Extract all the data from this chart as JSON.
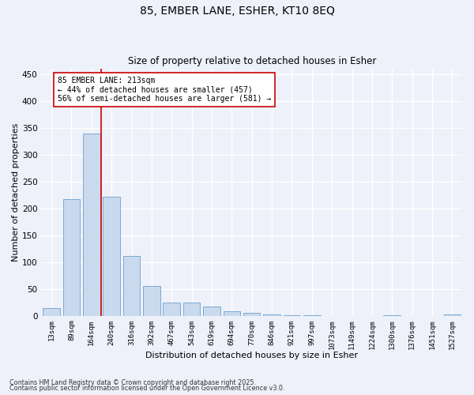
{
  "title_line1": "85, EMBER LANE, ESHER, KT10 8EQ",
  "title_line2": "Size of property relative to detached houses in Esher",
  "xlabel": "Distribution of detached houses by size in Esher",
  "ylabel": "Number of detached properties",
  "categories": [
    "13sqm",
    "89sqm",
    "164sqm",
    "240sqm",
    "316sqm",
    "392sqm",
    "467sqm",
    "543sqm",
    "619sqm",
    "694sqm",
    "770sqm",
    "846sqm",
    "921sqm",
    "997sqm",
    "1073sqm",
    "1149sqm",
    "1224sqm",
    "1300sqm",
    "1376sqm",
    "1451sqm",
    "1527sqm"
  ],
  "values": [
    15,
    217,
    340,
    222,
    112,
    55,
    25,
    25,
    17,
    8,
    6,
    2,
    1,
    1,
    0,
    0,
    0,
    1,
    0,
    0,
    2
  ],
  "bar_color": "#c9d9ee",
  "bar_edge_color": "#7aaad4",
  "vline_x": 2.5,
  "vline_color": "#cc0000",
  "annotation_text": "85 EMBER LANE: 213sqm\n← 44% of detached houses are smaller (457)\n56% of semi-detached houses are larger (581) →",
  "annotation_box_color": "white",
  "annotation_box_edge_color": "#cc0000",
  "ylim": [
    0,
    460
  ],
  "yticks": [
    0,
    50,
    100,
    150,
    200,
    250,
    300,
    350,
    400,
    450
  ],
  "background_color": "#eef1fa",
  "grid_color": "white",
  "footer_line1": "Contains HM Land Registry data © Crown copyright and database right 2025.",
  "footer_line2": "Contains public sector information licensed under the Open Government Licence v3.0."
}
